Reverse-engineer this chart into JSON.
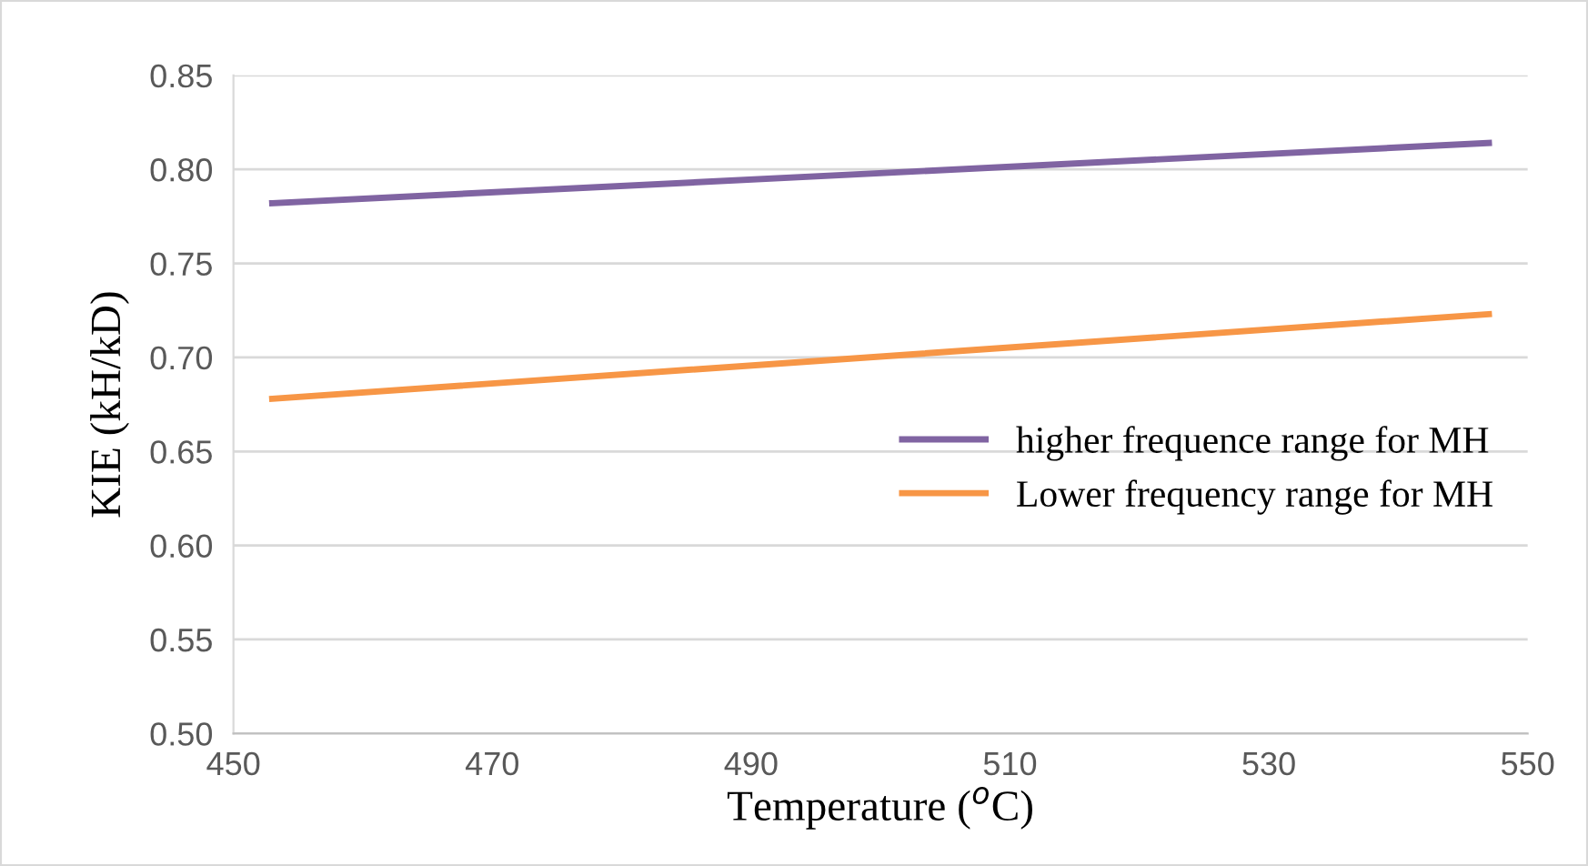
{
  "chart_data": {
    "type": "line",
    "xlabel": "Temperature ($^{o}$C)",
    "ylabel": "KIE (kH/kD)",
    "xlim": [
      450,
      550
    ],
    "xticks": [
      450,
      470,
      490,
      510,
      530,
      550
    ],
    "ylim": [
      0.5,
      0.85
    ],
    "yticks": [
      {
        "value": 0.5,
        "label": "0.50"
      },
      {
        "value": 0.55,
        "label": "0.55"
      },
      {
        "value": 0.6,
        "label": "0.60"
      },
      {
        "value": 0.65,
        "label": "0.65"
      },
      {
        "value": 0.7,
        "label": "0.70"
      },
      {
        "value": 0.75,
        "label": "0.75"
      },
      {
        "value": 0.8,
        "label": "0.80"
      },
      {
        "value": 0.85,
        "label": "0.85"
      }
    ],
    "x": [
      453,
      547
    ],
    "grid": "y",
    "legend": "right",
    "marker": "none",
    "line_style": "solid",
    "series": [
      {
        "name": "higher frequence range for MH",
        "color": "#8064a2",
        "values": [
          0.782,
          0.814
        ]
      },
      {
        "name": "Lower frequency range for MH",
        "color": "#f79646",
        "values": [
          0.678,
          0.723
        ]
      }
    ]
  }
}
